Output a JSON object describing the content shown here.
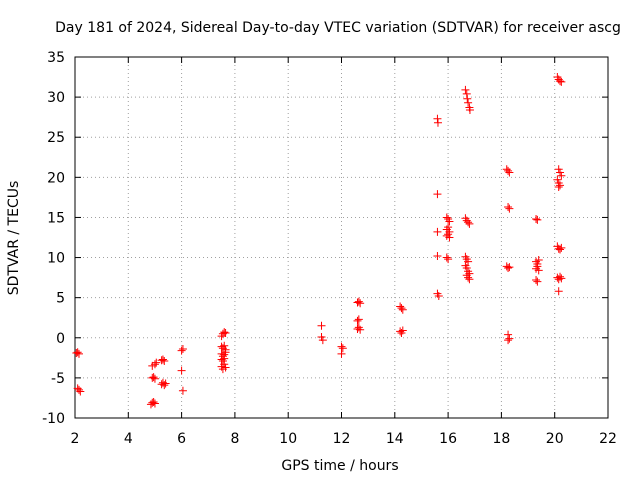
{
  "chart_data": {
    "type": "scatter",
    "title": "Day 181 of 2024, Sidereal Day-to-day VTEC variation (SDTVAR) for receiver ascg",
    "xlabel": "GPS time / hours",
    "ylabel": "SDTVAR / TECUs",
    "xlim": [
      2,
      22
    ],
    "ylim": [
      -10,
      35
    ],
    "xticks": [
      "2",
      "4",
      "6",
      "8",
      "10",
      "12",
      "14",
      "16",
      "18",
      "20",
      "22"
    ],
    "yticks": [
      "-10",
      "-5",
      "0",
      "5",
      "10",
      "15",
      "20",
      "25",
      "30",
      "35"
    ],
    "grid": true,
    "marker": "plus",
    "color": "#ff0000",
    "series": [
      {
        "name": "SDTVAR",
        "points": [
          [
            2.05,
            -1.9
          ],
          [
            2.1,
            -1.8
          ],
          [
            2.15,
            -2.0
          ],
          [
            2.1,
            -6.3
          ],
          [
            2.15,
            -6.5
          ],
          [
            2.2,
            -6.7
          ],
          [
            4.85,
            -8.3
          ],
          [
            4.9,
            -8.1
          ],
          [
            4.95,
            -8.0
          ],
          [
            5.0,
            -8.2
          ],
          [
            4.9,
            -5.0
          ],
          [
            4.95,
            -4.9
          ],
          [
            5.0,
            -5.1
          ],
          [
            4.9,
            -3.5
          ],
          [
            5.0,
            -3.3
          ],
          [
            5.05,
            -3.1
          ],
          [
            5.25,
            -2.8
          ],
          [
            5.3,
            -2.7
          ],
          [
            5.35,
            -2.9
          ],
          [
            5.25,
            -5.8
          ],
          [
            5.3,
            -5.6
          ],
          [
            5.35,
            -5.9
          ],
          [
            5.4,
            -5.7
          ],
          [
            6.0,
            -1.6
          ],
          [
            6.05,
            -1.4
          ],
          [
            6.0,
            -4.1
          ],
          [
            6.05,
            -6.6
          ],
          [
            7.5,
            0.2
          ],
          [
            7.55,
            0.5
          ],
          [
            7.6,
            0.7
          ],
          [
            7.65,
            0.6
          ],
          [
            7.5,
            -1.1
          ],
          [
            7.55,
            -1.3
          ],
          [
            7.6,
            -1.0
          ],
          [
            7.65,
            -1.5
          ],
          [
            7.5,
            -2.0
          ],
          [
            7.55,
            -2.3
          ],
          [
            7.6,
            -2.1
          ],
          [
            7.65,
            -1.8
          ],
          [
            7.5,
            -2.7
          ],
          [
            7.55,
            -2.9
          ],
          [
            7.6,
            -2.6
          ],
          [
            7.5,
            -3.6
          ],
          [
            7.55,
            -3.9
          ],
          [
            7.6,
            -3.3
          ],
          [
            7.65,
            -3.7
          ],
          [
            11.25,
            1.5
          ],
          [
            11.25,
            0.1
          ],
          [
            11.3,
            -0.3
          ],
          [
            12.0,
            -1.1
          ],
          [
            12.05,
            -1.3
          ],
          [
            12.0,
            -2.0
          ],
          [
            12.6,
            4.4
          ],
          [
            12.65,
            4.5
          ],
          [
            12.7,
            4.3
          ],
          [
            12.6,
            2.1
          ],
          [
            12.65,
            2.3
          ],
          [
            12.6,
            1.1
          ],
          [
            12.65,
            1.3
          ],
          [
            12.7,
            1.0
          ],
          [
            14.2,
            3.9
          ],
          [
            14.25,
            3.7
          ],
          [
            14.3,
            3.5
          ],
          [
            14.2,
            0.8
          ],
          [
            14.25,
            0.6
          ],
          [
            14.3,
            0.9
          ],
          [
            15.6,
            27.3
          ],
          [
            15.62,
            26.8
          ],
          [
            15.6,
            17.9
          ],
          [
            15.6,
            13.2
          ],
          [
            15.6,
            10.2
          ],
          [
            15.6,
            5.5
          ],
          [
            15.65,
            5.2
          ],
          [
            15.95,
            15.0
          ],
          [
            16.0,
            14.8
          ],
          [
            16.05,
            14.5
          ],
          [
            15.95,
            13.5
          ],
          [
            16.0,
            13.8
          ],
          [
            16.05,
            13.2
          ],
          [
            15.95,
            12.7
          ],
          [
            16.0,
            12.9
          ],
          [
            16.05,
            12.5
          ],
          [
            15.95,
            10.0
          ],
          [
            16.0,
            9.8
          ],
          [
            16.65,
            30.9
          ],
          [
            16.7,
            30.4
          ],
          [
            16.72,
            29.8
          ],
          [
            16.75,
            29.3
          ],
          [
            16.8,
            28.7
          ],
          [
            16.82,
            28.4
          ],
          [
            16.65,
            14.9
          ],
          [
            16.7,
            14.6
          ],
          [
            16.75,
            14.4
          ],
          [
            16.8,
            14.2
          ],
          [
            16.65,
            10.1
          ],
          [
            16.7,
            9.8
          ],
          [
            16.75,
            9.5
          ],
          [
            16.65,
            9.0
          ],
          [
            16.7,
            8.7
          ],
          [
            16.75,
            8.3
          ],
          [
            16.8,
            8.0
          ],
          [
            16.7,
            7.8
          ],
          [
            16.75,
            7.5
          ],
          [
            16.8,
            7.3
          ],
          [
            18.2,
            21.0
          ],
          [
            18.25,
            20.8
          ],
          [
            18.3,
            20.6
          ],
          [
            18.25,
            16.3
          ],
          [
            18.3,
            16.1
          ],
          [
            18.2,
            8.9
          ],
          [
            18.25,
            8.7
          ],
          [
            18.3,
            8.8
          ],
          [
            18.25,
            0.4
          ],
          [
            18.25,
            -0.3
          ],
          [
            18.3,
            -0.1
          ],
          [
            19.3,
            14.8
          ],
          [
            19.35,
            14.7
          ],
          [
            19.3,
            9.5
          ],
          [
            19.35,
            9.2
          ],
          [
            19.4,
            9.7
          ],
          [
            19.3,
            8.6
          ],
          [
            19.35,
            8.9
          ],
          [
            19.4,
            8.4
          ],
          [
            19.3,
            7.2
          ],
          [
            19.35,
            7.0
          ],
          [
            20.1,
            32.5
          ],
          [
            20.15,
            32.2
          ],
          [
            20.2,
            32.0
          ],
          [
            20.25,
            31.9
          ],
          [
            20.15,
            21.0
          ],
          [
            20.2,
            20.6
          ],
          [
            20.25,
            20.2
          ],
          [
            20.1,
            19.7
          ],
          [
            20.15,
            19.3
          ],
          [
            20.2,
            19.0
          ],
          [
            20.15,
            18.8
          ],
          [
            20.1,
            11.4
          ],
          [
            20.15,
            11.1
          ],
          [
            20.2,
            11.0
          ],
          [
            20.25,
            11.2
          ],
          [
            20.1,
            7.5
          ],
          [
            20.15,
            7.3
          ],
          [
            20.2,
            7.6
          ],
          [
            20.25,
            7.4
          ],
          [
            20.15,
            5.8
          ]
        ]
      }
    ]
  }
}
